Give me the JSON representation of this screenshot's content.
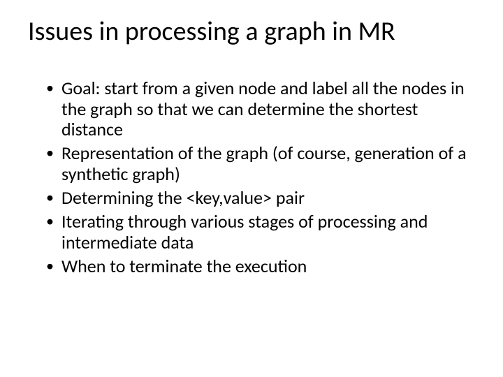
{
  "slide": {
    "title": "Issues in processing a graph in MR",
    "bullets": [
      "Goal: start from a given node and label all the nodes in the graph so that we can determine the shortest distance",
      "Representation of the graph (of course, generation of a synthetic graph)",
      "Determining the <key,value> pair",
      "Iterating through various stages of processing and intermediate data",
      "When to terminate the execution"
    ],
    "title_fontsize": 38,
    "body_fontsize": 26,
    "text_color": "#000000",
    "background_color": "#ffffff",
    "font_family": "Calibri"
  }
}
